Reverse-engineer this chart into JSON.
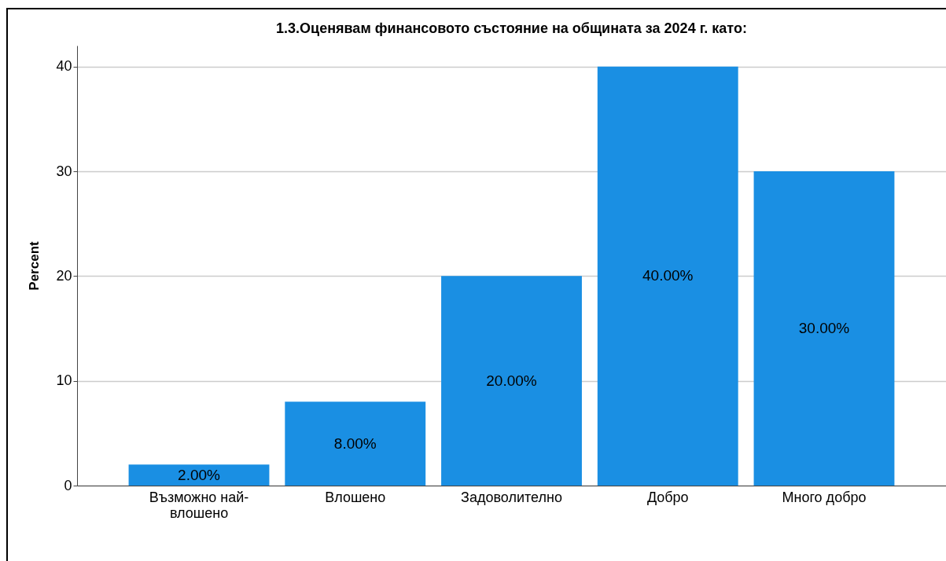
{
  "chart_data": {
    "type": "bar",
    "title": "1.3.Оценявам финансовото състояние на общината за 2024 г. като:",
    "ylabel": "Percent",
    "categories": [
      "Възможно най-влошено",
      "Влошено",
      "Задоволително",
      "Добро",
      "Много добро"
    ],
    "values": [
      2,
      8,
      20,
      40,
      30
    ],
    "color": "#1a8fe3",
    "value_labels": [
      "2.00%",
      "8.00%",
      "20.00%",
      "40.00%",
      "30.00%"
    ],
    "ylim": [
      0,
      42
    ],
    "yticks": [
      0,
      10,
      20,
      30,
      40
    ],
    "grid": "y"
  }
}
